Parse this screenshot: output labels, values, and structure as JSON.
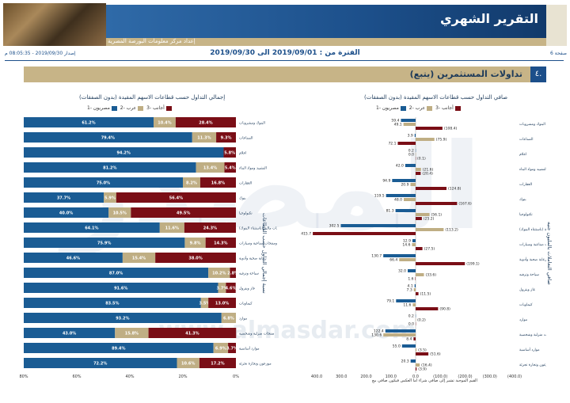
{
  "header": {
    "title": "التقرير الشهري",
    "producer": "إعداد مركز معلومات البورصة المصرية",
    "page": "صفحة 6",
    "issue": "إصدار 2019/09/30 - 08:05:35 م",
    "period": "الفترة من : 2019/09/01 الى 2019/09/30"
  },
  "section": {
    "number": "٤.",
    "title": "تداولات المستثمرين (يتبع)"
  },
  "watermark": {
    "text": "المصدر",
    "url": "www.almasdar.com"
  },
  "colors": {
    "egyptians": "#1a5c94",
    "arabs": "#bfae84",
    "foreigners": "#7a0e16"
  },
  "legend": [
    "مصريون -1",
    "عرب -2",
    "أجانب -3"
  ],
  "left_panel": {
    "title": "إجمالي التداول حسب قطاعات الاسهم المقيدة (بدون الصفقات)",
    "vertical_label": "نسبة إجمالي التداول حسب القطاعات"
  },
  "right_panel": {
    "title": "صافي التداول حسب قطاعات الاسهم المقيدة (بدون الصفقات)",
    "vertical_label": "صافي التعاملات بالمليون جنيه",
    "note": "القيم الموجبة تشير إلى صافي شراء اما العكس فيكون صافي بيع"
  },
  "chart_data": [
    {
      "type": "bar",
      "title": "إجمالي التداول حسب قطاعات الاسهم المقيدة (بدون الصفقات)",
      "orientation": "horizontal-stacked-100",
      "categories": [
        "البنوك ومشروبات",
        "الصناعات",
        "اعلام",
        "التشييد ومواد البناء",
        "العقارات",
        "بنوك",
        "تكنولوجيا",
        "خدمات مالية (باستثناء البنوك)",
        "خدمات ومنتجات صناعية وسيارات",
        "رعاية صحية وأدوية",
        "سياحة وترفيه",
        "غاز وبترول",
        "كيماويات",
        "موارد",
        "منتجات منزلية وشخصية",
        "موارد أساسية",
        "موزعون وتجارة تجزئة"
      ],
      "series": [
        {
          "name": "مصريون -1",
          "values": [
            61.2,
            79.4,
            94.2,
            81.2,
            75.0,
            37.7,
            40.0,
            64.1,
            75.9,
            46.6,
            87.0,
            91.6,
            83.5,
            93.2,
            43.0,
            89.4,
            72.2
          ]
        },
        {
          "name": "عرب -2",
          "values": [
            10.4,
            11.3,
            0.0,
            13.4,
            8.2,
            5.9,
            10.5,
            11.6,
            9.8,
            15.4,
            10.2,
            3.7,
            3.5,
            6.8,
            15.8,
            6.9,
            10.6
          ]
        },
        {
          "name": "أجانب -3",
          "values": [
            28.4,
            9.3,
            5.8,
            5.4,
            16.8,
            56.4,
            49.5,
            24.3,
            14.3,
            38.0,
            2.8,
            4.6,
            13.0,
            0.0,
            41.3,
            3.7,
            17.2
          ]
        }
      ],
      "ticks": [
        "80%",
        "60%",
        "40%",
        "20%",
        "0%"
      ],
      "xlim": [
        0,
        100
      ]
    },
    {
      "type": "bar",
      "title": "صافي التداول حسب قطاعات الاسهم المقيدة (بدون الصفقات)",
      "orientation": "horizontal-grouped",
      "categories": [
        "البنوك ومشروبات",
        "الصناعات",
        "اعلام",
        "التشييد ومواد البناء",
        "العقارات",
        "بنوك",
        "تكنولوجيا",
        "خدمات مالية (باستثناء البنوك)",
        "خدمات ومنتجات صناعية وسيارات",
        "رعاية صحية وأدوية",
        "سياحة وترفيه",
        "غاز وبترول",
        "كيماويات",
        "موارد",
        "منتجات منزلية وشخصية",
        "موارد أساسية",
        "موزعون وتجارة تجزئة"
      ],
      "series": [
        {
          "name": "مصريون -1",
          "values": [
            59.4,
            3.9,
            0.2,
            42.0,
            94.9,
            119.5,
            81.3,
            302.5,
            12.9,
            130.7,
            32.0,
            4.1,
            79.1,
            0.2,
            122.4,
            55.0,
            20.3
          ]
        },
        {
          "name": "عرب -2",
          "values": [
            49.1,
            -75.9,
            -0.0,
            -21.6,
            20.9,
            48.0,
            -56.1,
            -113.2,
            14.6,
            66.4,
            -33.6,
            7.3,
            11.6,
            -0.2,
            130.6,
            -3.5,
            -16.4
          ]
        },
        {
          "name": "أجانب -3",
          "values": [
            -108.4,
            72.1,
            -0.1,
            -20.4,
            -124.8,
            -167.6,
            -25.2,
            415.7,
            -27.5,
            -199.1,
            1.6,
            -11.5,
            -90.8,
            0.0,
            8.4,
            -51.6,
            -3.9
          ]
        }
      ],
      "ticks": [
        "400.0",
        "300.0",
        "200.0",
        "100.0",
        "0.0",
        "(100.0)",
        "(200.0)",
        "(300.0)",
        "(400.0)"
      ],
      "xlim": [
        -400,
        400
      ]
    }
  ]
}
